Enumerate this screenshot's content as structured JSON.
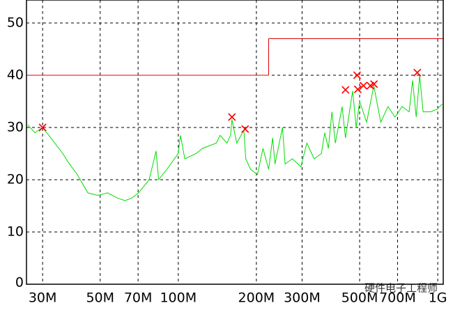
{
  "chart_data": {
    "type": "line",
    "xscale": "log",
    "grid": true,
    "xlim": [
      26,
      1050
    ],
    "ylim": [
      0,
      54.4
    ],
    "xticks": [
      {
        "value": 30,
        "label": "30M"
      },
      {
        "value": 50,
        "label": "50M"
      },
      {
        "value": 70,
        "label": "70M"
      },
      {
        "value": 100,
        "label": "100M"
      },
      {
        "value": 200,
        "label": "200M"
      },
      {
        "value": 300,
        "label": "300M"
      },
      {
        "value": 500,
        "label": "500M"
      },
      {
        "value": 700,
        "label": "700M"
      },
      {
        "value": 1000,
        "label": "1G"
      }
    ],
    "yticks": [
      0,
      10,
      20,
      30,
      40,
      50
    ],
    "series": [
      {
        "color": "#00dd00",
        "style": "line",
        "x": [
          26.3,
          28.0,
          30,
          31.7,
          35.9,
          37.5,
          40.8,
          44.8,
          48.9,
          53.4,
          58.3,
          62.3,
          66.2,
          70.3,
          77.2,
          82.1,
          84,
          90.4,
          99.9,
          102,
          106,
          117,
          124,
          140,
          145,
          154,
          159,
          161,
          168,
          179,
          182,
          190,
          202,
          212,
          223,
          231,
          236,
          252,
          258,
          275,
          297,
          313,
          334,
          356,
          367,
          379,
          391,
          403,
          428,
          441,
          470,
          485,
          500,
          532,
          567,
          603,
          643,
          684,
          729,
          776,
          800,
          826,
          852,
          878,
          938,
          994,
          1040
        ],
        "values": [
          30.5,
          29,
          30,
          28.5,
          25,
          23.5,
          21,
          17.5,
          17,
          17.5,
          16.5,
          16,
          16.5,
          17.5,
          20,
          25.5,
          20,
          22,
          25,
          28.5,
          24,
          25,
          26,
          27,
          28.5,
          27,
          28.5,
          31.5,
          27,
          29.5,
          24,
          22,
          21,
          26,
          22,
          28,
          23,
          30,
          23,
          24,
          22.5,
          27,
          24,
          25,
          29,
          26,
          33,
          27,
          34,
          28,
          37,
          30,
          35,
          31,
          38,
          31,
          34,
          32,
          34,
          33,
          39,
          32,
          40,
          33,
          33,
          33.5,
          34.5
        ]
      },
      {
        "color": "#dd0000",
        "style": "line",
        "x": [
          26,
          223,
          223,
          1050
        ],
        "values": [
          40,
          40,
          47,
          47
        ]
      },
      {
        "color": "#ff0000",
        "style": "marker",
        "x": [
          30,
          161,
          181,
          441,
          489,
          492,
          517,
          550,
          568,
          834
        ],
        "values": [
          30,
          32,
          29.7,
          37.2,
          40,
          37.3,
          38,
          38,
          38.3,
          40.5
        ]
      }
    ],
    "watermark": "硬件电子工程师"
  }
}
